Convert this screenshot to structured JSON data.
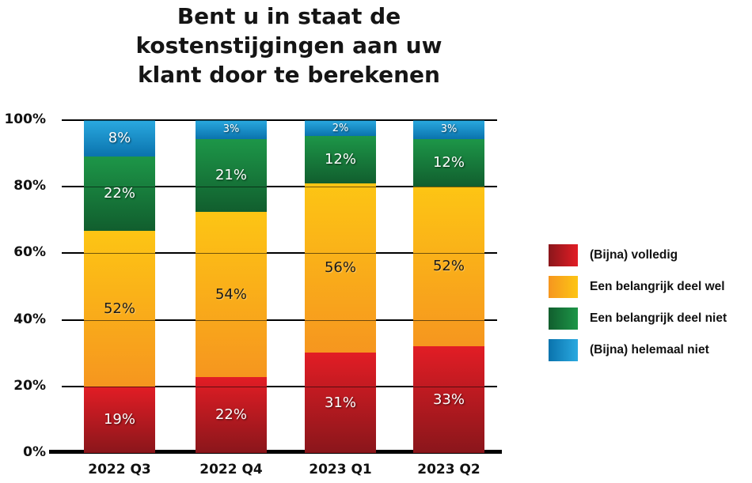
{
  "chart_data": {
    "type": "bar",
    "stacked": true,
    "orientation": "vertical",
    "title": "Bent u in staat de kostenstijgingen aan uw klant door te berekenen",
    "title_lines": [
      "Bent u in staat de",
      "kostenstijgingen aan uw",
      "klant door te berekenen"
    ],
    "categories": [
      "2022 Q3",
      "2022 Q4",
      "2023 Q1",
      "2023 Q2"
    ],
    "series": [
      {
        "name": "(Bijna) volledig",
        "values": [
          19,
          22,
          31,
          33
        ],
        "labels": [
          "19%",
          "22%",
          "31%",
          "33%"
        ],
        "color_top": "#e21d25",
        "color_bottom": "#8a161b",
        "label_style": "light"
      },
      {
        "name": "Een belangrijk deel wel",
        "values": [
          52,
          54,
          56,
          52
        ],
        "labels": [
          "52%",
          "54%",
          "56%",
          "52%"
        ],
        "color_top": "#fdc514",
        "color_bottom": "#f6961f",
        "label_style": "dark"
      },
      {
        "name": "Een belangrijk deel niet",
        "values": [
          22,
          21,
          12,
          12
        ],
        "labels": [
          "22%",
          "21%",
          "12%",
          "12%"
        ],
        "color_top": "#1d9648",
        "color_bottom": "#115e2e",
        "label_style": "light"
      },
      {
        "name": "(Bijna) helemaal niet",
        "values": [
          8,
          3,
          2,
          3
        ],
        "labels": [
          "8%",
          "3%",
          "2%",
          "3%"
        ],
        "color_top": "#2aa9e0",
        "color_bottom": "#0a73ad",
        "label_style": "light"
      }
    ],
    "y_ticks": [
      "0%",
      "20%",
      "40%",
      "60%",
      "80%",
      "100%"
    ],
    "ylim": [
      0,
      100
    ],
    "grid": true,
    "gridline_color": "#000000",
    "axis_color": "#000000",
    "background_color": "#ffffff",
    "legend_position": "right"
  }
}
